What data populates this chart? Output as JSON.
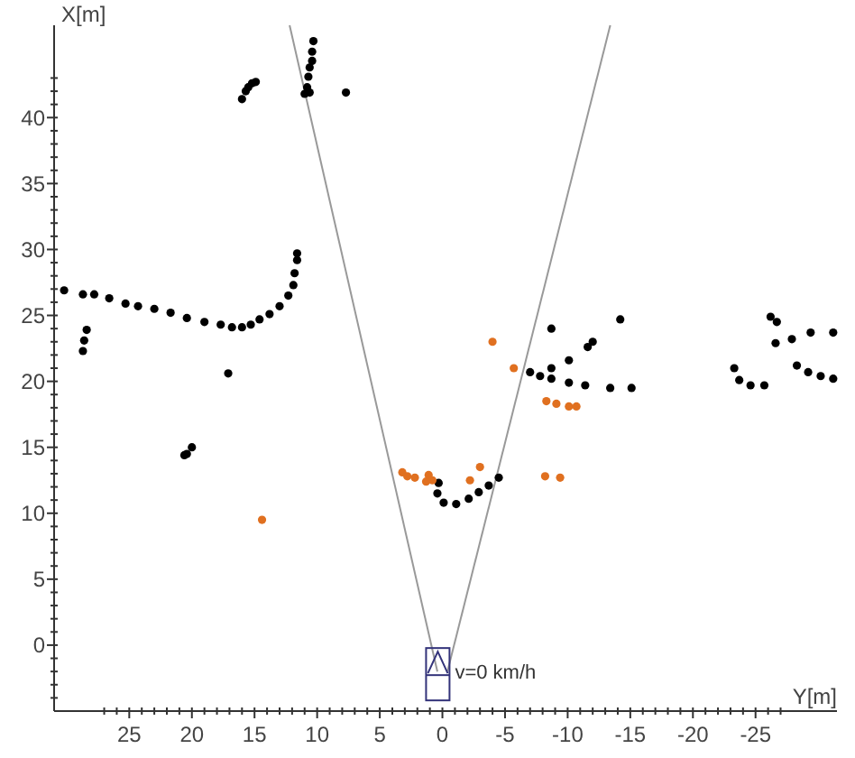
{
  "chart_data": {
    "type": "scatter",
    "xlabel": "Y[m]",
    "ylabel": "X[m]",
    "xlim": [
      31,
      -31.5
    ],
    "ylim": [
      -5,
      47
    ],
    "xticks": [
      {
        "value": 27,
        "label": null
      },
      {
        "value": 26,
        "label": null
      },
      25,
      {
        "value": 24,
        "label": null
      },
      {
        "value": 23,
        "label": null
      },
      {
        "value": 22,
        "label": null
      },
      {
        "value": 21,
        "label": null
      },
      20,
      {
        "value": 19,
        "label": null
      },
      {
        "value": 18,
        "label": null
      },
      {
        "value": 17,
        "label": null
      },
      {
        "value": 16,
        "label": null
      },
      15,
      {
        "value": 14,
        "label": null
      },
      {
        "value": 13,
        "label": null
      },
      {
        "value": 12,
        "label": null
      },
      {
        "value": 11,
        "label": null
      },
      10,
      {
        "value": 9,
        "label": null
      },
      {
        "value": 8,
        "label": null
      },
      {
        "value": 7,
        "label": null
      },
      {
        "value": 6,
        "label": null
      },
      5,
      {
        "value": 4,
        "label": null
      },
      {
        "value": 3,
        "label": null
      },
      {
        "value": 2,
        "label": null
      },
      {
        "value": 1,
        "label": null
      },
      0,
      {
        "value": -1,
        "label": null
      },
      {
        "value": -2,
        "label": null
      },
      {
        "value": -3,
        "label": null
      },
      {
        "value": -4,
        "label": null
      },
      -5,
      {
        "value": -6,
        "label": null
      },
      {
        "value": -7,
        "label": null
      },
      {
        "value": -8,
        "label": null
      },
      {
        "value": -9,
        "label": null
      },
      -10,
      {
        "value": -11,
        "label": null
      },
      {
        "value": -12,
        "label": null
      },
      {
        "value": -13,
        "label": null
      },
      {
        "value": -14,
        "label": null
      },
      -15,
      {
        "value": -16,
        "label": null
      },
      {
        "value": -17,
        "label": null
      },
      {
        "value": -18,
        "label": null
      },
      {
        "value": -19,
        "label": null
      },
      -20,
      {
        "value": -21,
        "label": null
      },
      {
        "value": -22,
        "label": null
      },
      {
        "value": -23,
        "label": null
      },
      {
        "value": -24,
        "label": null
      },
      -25,
      {
        "value": -26,
        "label": null
      },
      {
        "value": -27,
        "label": null
      }
    ],
    "yticks": [
      {
        "value": -4,
        "label": null
      },
      {
        "value": -3,
        "label": null
      },
      {
        "value": -2,
        "label": null
      },
      {
        "value": -1,
        "label": null
      },
      0,
      {
        "value": 1,
        "label": null
      },
      {
        "value": 2,
        "label": null
      },
      {
        "value": 3,
        "label": null
      },
      {
        "value": 4,
        "label": null
      },
      5,
      {
        "value": 6,
        "label": null
      },
      {
        "value": 7,
        "label": null
      },
      {
        "value": 8,
        "label": null
      },
      {
        "value": 9,
        "label": null
      },
      10,
      {
        "value": 11,
        "label": null
      },
      {
        "value": 12,
        "label": null
      },
      {
        "value": 13,
        "label": null
      },
      {
        "value": 14,
        "label": null
      },
      15,
      {
        "value": 16,
        "label": null
      },
      {
        "value": 17,
        "label": null
      },
      {
        "value": 18,
        "label": null
      },
      {
        "value": 19,
        "label": null
      },
      20,
      {
        "value": 21,
        "label": null
      },
      {
        "value": 22,
        "label": null
      },
      {
        "value": 23,
        "label": null
      },
      {
        "value": 24,
        "label": null
      },
      25,
      {
        "value": 26,
        "label": null
      },
      {
        "value": 27,
        "label": null
      },
      {
        "value": 28,
        "label": null
      },
      {
        "value": 29,
        "label": null
      },
      30,
      {
        "value": 31,
        "label": null
      },
      {
        "value": 32,
        "label": null
      },
      {
        "value": 33,
        "label": null
      },
      {
        "value": 34,
        "label": null
      },
      35,
      {
        "value": 36,
        "label": null
      },
      {
        "value": 37,
        "label": null
      },
      {
        "value": 38,
        "label": null
      },
      {
        "value": 39,
        "label": null
      },
      40,
      {
        "value": 41,
        "label": null
      },
      {
        "value": 42,
        "label": null
      },
      {
        "value": 43,
        "label": null
      }
    ],
    "grid": false,
    "annotations": [
      {
        "text": "v=0 km/h",
        "x": -1,
        "y": -2
      }
    ],
    "series": [
      {
        "type": "line",
        "color": "#999999",
        "x": [
          0.4,
          12.2
        ],
        "values": [
          -2,
          47
        ]
      },
      {
        "type": "line",
        "color": "#999999",
        "x": [
          -0.4,
          -13.4
        ],
        "values": [
          -2,
          47
        ]
      },
      {
        "color": "#000000",
        "marker": "circle",
        "x": [
          16.0,
          15.7,
          15.5,
          15.2,
          14.9,
          10.3,
          10.4,
          10.4,
          10.6,
          10.7,
          10.8,
          10.6,
          11.0,
          7.7,
          30.2,
          28.7,
          27.8,
          26.6,
          25.3,
          24.3,
          23.0,
          21.7,
          20.4,
          19.0,
          17.7,
          16.8,
          16.0,
          15.3,
          14.6,
          13.8,
          13.0,
          12.3,
          11.9,
          11.8,
          11.6,
          11.6,
          28.7,
          28.6,
          28.4,
          17.1,
          20.4,
          20.0,
          20.6,
          0.3,
          0.4,
          -0.1,
          -1.1,
          -2.1,
          -2.9,
          -3.7,
          -4.5,
          -7.0,
          -7.8,
          -8.7,
          -10.1,
          -11.4,
          -13.4,
          -15.1,
          -8.7,
          -10.1,
          -11.6,
          -12.0,
          -8.7,
          -14.2,
          -23.3,
          -23.7,
          -24.6,
          -25.7,
          -26.2,
          -26.7,
          -26.6,
          -29.4,
          -31.2,
          -28.3,
          -29.2,
          -30.2,
          -31.2,
          -27.9
        ],
        "values": [
          41.4,
          42.0,
          42.3,
          42.6,
          42.7,
          45.8,
          45.0,
          44.3,
          43.8,
          43.1,
          42.3,
          41.9,
          41.8,
          41.9,
          26.9,
          26.6,
          26.6,
          26.3,
          25.9,
          25.7,
          25.5,
          25.2,
          24.8,
          24.5,
          24.3,
          24.1,
          24.1,
          24.3,
          24.7,
          25.1,
          25.7,
          26.5,
          27.3,
          28.2,
          29.2,
          29.7,
          22.3,
          23.1,
          23.9,
          20.6,
          14.5,
          15.0,
          14.4,
          12.3,
          11.5,
          10.8,
          10.7,
          11.1,
          11.6,
          12.1,
          12.7,
          20.7,
          20.4,
          20.2,
          19.9,
          19.7,
          19.5,
          19.5,
          21.0,
          21.6,
          22.6,
          23.0,
          24.0,
          24.7,
          21.0,
          20.1,
          19.7,
          19.7,
          24.9,
          24.5,
          22.9,
          23.7,
          23.7,
          21.2,
          20.7,
          20.4,
          20.2,
          23.2
        ]
      },
      {
        "color": "#e07020",
        "marker": "circle",
        "x": [
          14.4,
          3.2,
          2.8,
          2.2,
          1.3,
          1.1,
          0.8,
          -3.0,
          -2.2,
          -4.0,
          -5.7,
          -8.3,
          -9.1,
          -10.1,
          -10.7,
          -8.2,
          -9.4
        ],
        "values": [
          9.5,
          13.1,
          12.8,
          12.7,
          12.4,
          12.9,
          12.5,
          13.5,
          12.5,
          23.0,
          21.0,
          18.5,
          18.3,
          18.1,
          18.1,
          12.8,
          12.7
        ]
      }
    ]
  }
}
